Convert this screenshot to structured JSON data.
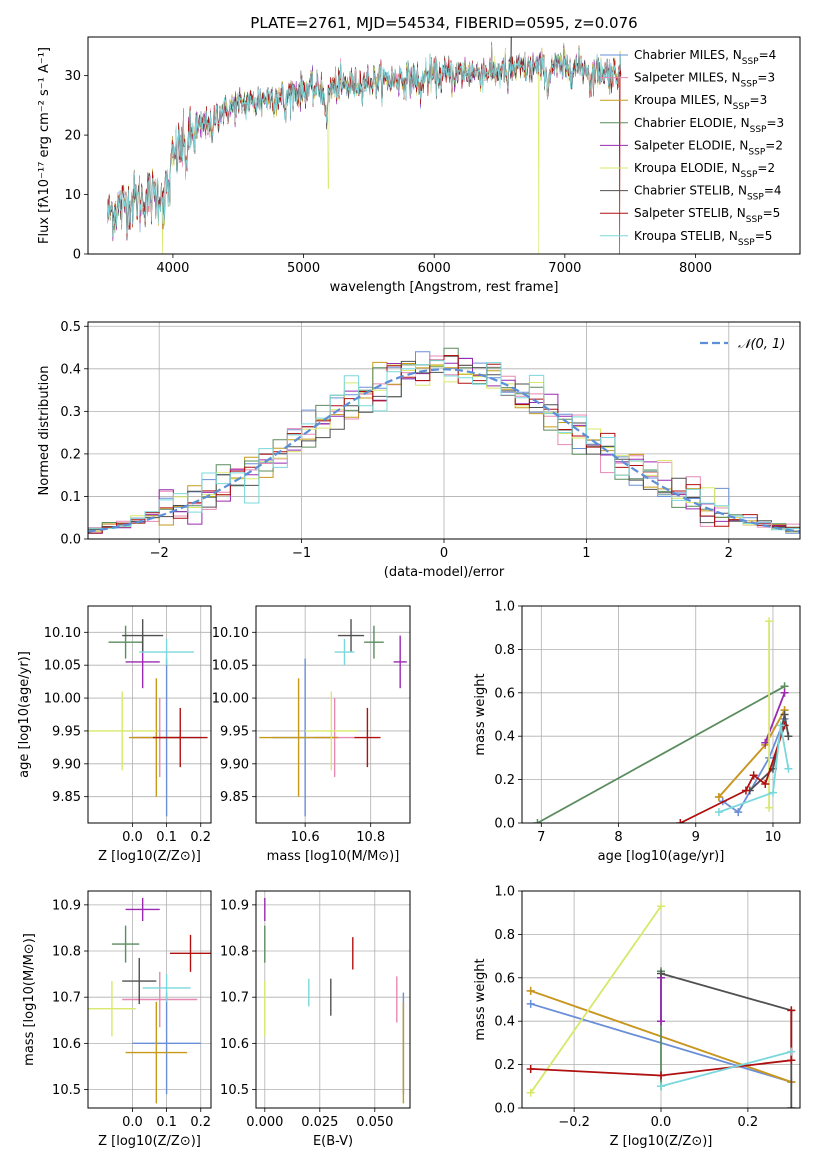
{
  "figure": {
    "title": "PLATE=2761, MJD=54534, FIBERID=0595, z=0.076"
  },
  "models": [
    {
      "name": "Chabrier MILES",
      "nssp": "4",
      "color": "#6a8fd8"
    },
    {
      "name": "Salpeter MILES",
      "nssp": "3",
      "color": "#e888b4"
    },
    {
      "name": "Kroupa MILES",
      "nssp": "3",
      "color": "#c69a18"
    },
    {
      "name": "Chabrier ELODIE",
      "nssp": "3",
      "color": "#5b8c5e"
    },
    {
      "name": "Salpeter ELODIE",
      "nssp": "2",
      "color": "#9a2ab0"
    },
    {
      "name": "Kroupa ELODIE",
      "nssp": "2",
      "color": "#d8e86a"
    },
    {
      "name": "Chabrier STELIB",
      "nssp": "4",
      "color": "#505050"
    },
    {
      "name": "Salpeter STELIB",
      "nssp": "5",
      "color": "#b01010"
    },
    {
      "name": "Kroupa STELIB",
      "nssp": "5",
      "color": "#7ad8dc"
    }
  ],
  "chart_data": [
    {
      "id": "spectrum",
      "type": "line",
      "xlabel": "wavelength [Angstrom, rest frame]",
      "ylabel": "Flux [fλ10⁻¹⁷ erg cm⁻² s⁻¹ A⁻¹]",
      "xlim": [
        3350,
        8800
      ],
      "ylim": [
        0,
        36.5
      ],
      "xticks": [
        4000,
        5000,
        6000,
        7000,
        8000
      ],
      "yticks": [
        0,
        10,
        20,
        30
      ],
      "continuum": {
        "x": [
          3500,
          3700,
          3900,
          4000,
          4100,
          4300,
          4500,
          4700,
          5000,
          5200,
          5500,
          5800,
          6000,
          6300,
          6600,
          6900,
          7100,
          7300,
          7400
        ],
        "y": [
          7,
          9,
          10,
          16,
          19,
          23,
          25,
          26,
          27.5,
          28,
          29,
          29.5,
          30,
          30.5,
          31,
          31.5,
          31.5,
          30.5,
          30.5
        ]
      },
      "absorption_lines": [
        {
          "x": 3934,
          "depth": 5
        },
        {
          "x": 3969,
          "depth": 4
        },
        {
          "x": 4101,
          "depth": 3
        },
        {
          "x": 4300,
          "depth": 4
        },
        {
          "x": 4861,
          "depth": 3
        },
        {
          "x": 5175,
          "depth": 6
        },
        {
          "x": 5892,
          "depth": 3
        },
        {
          "x": 6563,
          "depth": 2
        },
        {
          "x": 6870,
          "depth": 4
        },
        {
          "x": 7200,
          "depth": 3
        }
      ],
      "glitches": [
        {
          "model": 5,
          "x": 3920,
          "to": 0
        },
        {
          "model": 5,
          "x": 5190,
          "to": 11
        },
        {
          "model": 5,
          "x": 6800,
          "to": 0
        },
        {
          "model": 7,
          "x": 7420,
          "to": 0
        },
        {
          "model": 6,
          "x": 6590,
          "to": 36.5
        }
      ]
    },
    {
      "id": "residuals",
      "type": "histogram",
      "xlabel": "(data-model)/error",
      "ylabel": "Normed distribution",
      "xlim": [
        -2.5,
        2.5
      ],
      "ylim": [
        0,
        0.51
      ],
      "xticks": [
        -2,
        -1,
        0,
        1,
        2
      ],
      "yticks": [
        0.0,
        0.1,
        0.2,
        0.3,
        0.4,
        0.5
      ],
      "bin_width": 0.1,
      "reference_curve": {
        "name": "𝒩(0, 1)",
        "color": "#5b8fd8"
      }
    },
    {
      "id": "age_vs_Z",
      "type": "scatter",
      "xlabel": "Z [log10(Z/Z⊙)]",
      "ylabel": "age  [log10(age/yr)]",
      "xlim": [
        -0.13,
        0.23
      ],
      "ylim": [
        9.81,
        10.14
      ],
      "xticks": [
        0.0,
        0.1,
        0.2
      ],
      "yticks": [
        9.85,
        9.9,
        9.95,
        10.0,
        10.05,
        10.1
      ],
      "points": [
        {
          "m": 0,
          "x": 0.1,
          "y": 9.94,
          "ex": 0.1,
          "ey": 0.12
        },
        {
          "m": 1,
          "x": 0.08,
          "y": 9.94,
          "ex": 0.07,
          "ey": 0.06
        },
        {
          "m": 2,
          "x": 0.07,
          "y": 9.94,
          "ex": 0.08,
          "ey": 0.09
        },
        {
          "m": 3,
          "x": -0.02,
          "y": 10.085,
          "ex": 0.05,
          "ey": 0.025
        },
        {
          "m": 4,
          "x": 0.03,
          "y": 10.055,
          "ex": 0.05,
          "ey": 0.04
        },
        {
          "m": 5,
          "x": -0.03,
          "y": 9.95,
          "ex": 0.1,
          "ey": 0.06
        },
        {
          "m": 6,
          "x": 0.03,
          "y": 10.095,
          "ex": 0.06,
          "ey": 0.025
        },
        {
          "m": 7,
          "x": 0.14,
          "y": 9.94,
          "ex": 0.08,
          "ey": 0.045
        },
        {
          "m": 8,
          "x": 0.1,
          "y": 10.07,
          "ex": 0.08,
          "ey": 0.02
        }
      ]
    },
    {
      "id": "age_vs_mass",
      "type": "scatter",
      "xlabel": "mass [log10(M/M⊙)]",
      "ylabel": "",
      "xlim": [
        10.45,
        10.92
      ],
      "ylim": [
        9.81,
        10.14
      ],
      "xticks": [
        10.6,
        10.8
      ],
      "yticks": [
        9.85,
        9.9,
        9.95,
        10.0,
        10.05,
        10.1
      ],
      "points": [
        {
          "m": 0,
          "x": 10.6,
          "y": 9.94,
          "ex": 0.1,
          "ey": 0.12
        },
        {
          "m": 1,
          "x": 10.69,
          "y": 9.94,
          "ex": 0.06,
          "ey": 0.06
        },
        {
          "m": 2,
          "x": 10.58,
          "y": 9.94,
          "ex": 0.12,
          "ey": 0.09
        },
        {
          "m": 3,
          "x": 10.81,
          "y": 10.085,
          "ex": 0.03,
          "ey": 0.025
        },
        {
          "m": 4,
          "x": 10.89,
          "y": 10.055,
          "ex": 0.02,
          "ey": 0.04
        },
        {
          "m": 5,
          "x": 10.68,
          "y": 9.95,
          "ex": 0.08,
          "ey": 0.06
        },
        {
          "m": 6,
          "x": 10.74,
          "y": 10.095,
          "ex": 0.04,
          "ey": 0.025
        },
        {
          "m": 7,
          "x": 10.79,
          "y": 9.94,
          "ex": 0.04,
          "ey": 0.045
        },
        {
          "m": 8,
          "x": 10.72,
          "y": 10.07,
          "ex": 0.03,
          "ey": 0.02
        }
      ]
    },
    {
      "id": "massweight_vs_age",
      "type": "line",
      "xlabel": "age  [log10(age/yr)]",
      "ylabel": "mass weight",
      "xlim": [
        6.75,
        10.35
      ],
      "ylim": [
        0,
        1.0
      ],
      "xticks": [
        7,
        8,
        9,
        10
      ],
      "yticks": [
        0.0,
        0.2,
        0.4,
        0.6,
        0.8,
        1.0
      ],
      "series": [
        {
          "m": 0,
          "x": [
            9.35,
            9.55,
            9.95,
            10.15
          ],
          "y": [
            0.1,
            0.05,
            0.3,
            0.48
          ]
        },
        {
          "m": 1,
          "x": [
            9.3,
            9.9,
            10.15
          ],
          "y": [
            0.12,
            0.36,
            0.52
          ]
        },
        {
          "m": 2,
          "x": [
            9.3,
            9.9,
            10.15
          ],
          "y": [
            0.12,
            0.36,
            0.52
          ]
        },
        {
          "m": 3,
          "x": [
            6.95,
            10.15
          ],
          "y": [
            0.0,
            0.63
          ]
        },
        {
          "m": 4,
          "x": [
            9.9,
            10.15
          ],
          "y": [
            0.37,
            0.6
          ]
        },
        {
          "m": 5,
          "x": [
            9.95,
            9.95
          ],
          "y": [
            0.07,
            0.93
          ]
        },
        {
          "m": 6,
          "x": [
            9.7,
            10.0,
            10.15,
            10.2
          ],
          "y": [
            0.15,
            0.25,
            0.5,
            0.4
          ]
        },
        {
          "m": 7,
          "x": [
            8.8,
            9.65,
            9.75,
            9.9,
            10.15
          ],
          "y": [
            0.0,
            0.15,
            0.22,
            0.18,
            0.45
          ]
        },
        {
          "m": 8,
          "x": [
            9.3,
            10.0,
            10.1,
            10.2
          ],
          "y": [
            0.05,
            0.14,
            0.45,
            0.25
          ]
        }
      ]
    },
    {
      "id": "mass_vs_Z",
      "type": "scatter",
      "xlabel": "Z [log10(Z/Z⊙)]",
      "ylabel": "mass [log10(M/M⊙)]",
      "xlim": [
        -0.13,
        0.23
      ],
      "ylim": [
        10.46,
        10.93
      ],
      "xticks": [
        0.0,
        0.1,
        0.2
      ],
      "yticks": [
        10.5,
        10.6,
        10.7,
        10.8,
        10.9
      ],
      "points": [
        {
          "m": 0,
          "x": 0.1,
          "y": 10.6,
          "ex": 0.1,
          "ey": 0.11
        },
        {
          "m": 1,
          "x": 0.08,
          "y": 10.695,
          "ex": 0.11,
          "ey": 0.06
        },
        {
          "m": 2,
          "x": 0.07,
          "y": 10.58,
          "ex": 0.09,
          "ey": 0.11
        },
        {
          "m": 3,
          "x": -0.02,
          "y": 10.815,
          "ex": 0.04,
          "ey": 0.04
        },
        {
          "m": 4,
          "x": 0.03,
          "y": 10.89,
          "ex": 0.05,
          "ey": 0.025
        },
        {
          "m": 5,
          "x": -0.06,
          "y": 10.675,
          "ex": 0.07,
          "ey": 0.06
        },
        {
          "m": 6,
          "x": 0.02,
          "y": 10.735,
          "ex": 0.05,
          "ey": 0.05
        },
        {
          "m": 7,
          "x": 0.17,
          "y": 10.795,
          "ex": 0.06,
          "ey": 0.04
        },
        {
          "m": 8,
          "x": 0.1,
          "y": 10.72,
          "ex": 0.07,
          "ey": 0.03
        }
      ]
    },
    {
      "id": "mass_vs_ebv",
      "type": "scatter",
      "xlabel": "E(B-V)",
      "ylabel": "",
      "xlim": [
        -0.004,
        0.066
      ],
      "ylim": [
        10.46,
        10.93
      ],
      "xticks": [
        0.0,
        0.025,
        0.05
      ],
      "yticks": [
        10.5,
        10.6,
        10.7,
        10.8,
        10.9
      ],
      "points": [
        {
          "m": 0,
          "x": 0.063,
          "y": 10.6,
          "ex": 0,
          "ey": 0.11
        },
        {
          "m": 1,
          "x": 0.06,
          "y": 10.695,
          "ex": 0,
          "ey": 0.05
        },
        {
          "m": 2,
          "x": 0.063,
          "y": 10.58,
          "ex": 0,
          "ey": 0.11
        },
        {
          "m": 3,
          "x": 0.0,
          "y": 10.815,
          "ex": 0,
          "ey": 0.04
        },
        {
          "m": 4,
          "x": 0.0,
          "y": 10.89,
          "ex": 0,
          "ey": 0.025
        },
        {
          "m": 5,
          "x": 0.0,
          "y": 10.675,
          "ex": 0,
          "ey": 0.06
        },
        {
          "m": 6,
          "x": 0.03,
          "y": 10.7,
          "ex": 0,
          "ey": 0.04
        },
        {
          "m": 7,
          "x": 0.04,
          "y": 10.795,
          "ex": 0,
          "ey": 0.035
        },
        {
          "m": 8,
          "x": 0.02,
          "y": 10.71,
          "ex": 0,
          "ey": 0.03
        }
      ]
    },
    {
      "id": "massweight_vs_Z",
      "type": "line",
      "xlabel": "Z [log10(Z/Z⊙)]",
      "ylabel": "mass weight",
      "xlim": [
        -0.32,
        0.32
      ],
      "ylim": [
        0,
        1.0
      ],
      "xticks": [
        -0.2,
        0.0,
        0.2
      ],
      "yticks": [
        0.0,
        0.2,
        0.4,
        0.6,
        0.8,
        1.0
      ],
      "series": [
        {
          "m": 0,
          "x": [
            -0.3,
            0.3
          ],
          "y": [
            0.48,
            0.12
          ]
        },
        {
          "m": 1,
          "x": [
            -0.3,
            0.3
          ],
          "y": [
            0.54,
            0.12
          ]
        },
        {
          "m": 2,
          "x": [
            -0.3,
            0.3
          ],
          "y": [
            0.54,
            0.12
          ]
        },
        {
          "m": 3,
          "x": [
            0.0,
            0.0
          ],
          "y": [
            0.1,
            0.63
          ]
        },
        {
          "m": 4,
          "x": [
            0.0,
            0.0
          ],
          "y": [
            0.4,
            0.6
          ]
        },
        {
          "m": 5,
          "x": [
            -0.3,
            0.0
          ],
          "y": [
            0.07,
            0.93
          ]
        },
        {
          "m": 6,
          "x": [
            0.0,
            0.3,
            0.3
          ],
          "y": [
            0.62,
            0.45,
            0.0
          ]
        },
        {
          "m": 7,
          "x": [
            -0.3,
            0.0,
            0.3,
            0.3
          ],
          "y": [
            0.18,
            0.15,
            0.22,
            0.45
          ]
        },
        {
          "m": 8,
          "x": [
            0.0,
            0.3
          ],
          "y": [
            0.1,
            0.26
          ]
        }
      ]
    }
  ]
}
